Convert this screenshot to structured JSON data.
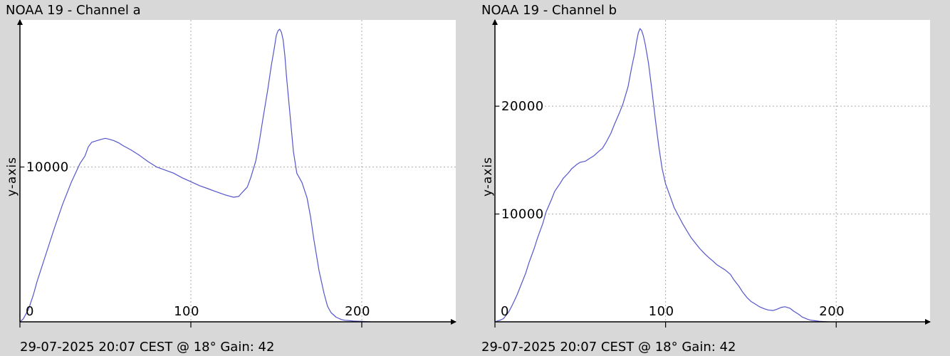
{
  "panels": [
    {
      "title": "NOAA 19 - Channel a",
      "footer": "29-07-2025 20:07 CEST @ 18° Gain: 42"
    },
    {
      "title": "NOAA 19 - Channel b",
      "footer": "29-07-2025 20:07 CEST @ 18° Gain: 42"
    }
  ],
  "colors": {
    "background": "#d8d8d8",
    "plot_background": "#ffffff",
    "line": "#5555cc",
    "grid": "#aaaaaa",
    "axis": "#000000"
  },
  "chart_data": [
    {
      "type": "line",
      "title": "NOAA 19 - Channel a",
      "xlabel": "",
      "ylabel": "y-axis",
      "xlim": [
        0,
        255
      ],
      "ylim": [
        0,
        19500
      ],
      "xticks": [
        0,
        100,
        200
      ],
      "xtick_labels": [
        "0",
        "100",
        "200"
      ],
      "yticks": [
        10000
      ],
      "ytick_labels": [
        "10000"
      ],
      "grid": true,
      "series": [
        {
          "x": [
            0,
            2,
            5,
            8,
            10,
            15,
            20,
            25,
            30,
            35,
            38,
            40,
            42,
            45,
            48,
            50,
            52,
            55,
            58,
            60,
            65,
            70,
            75,
            80,
            85,
            90,
            95,
            100,
            105,
            110,
            115,
            120,
            125,
            128,
            130,
            133,
            135,
            138,
            140,
            142,
            145,
            147,
            149,
            150,
            151,
            152,
            153,
            154,
            155,
            156,
            158,
            160,
            162,
            165,
            168,
            170,
            172,
            175,
            178,
            180,
            182,
            185,
            188,
            190,
            193,
            195,
            200,
            205
          ],
          "y": [
            0,
            200,
            800,
            1800,
            2600,
            4300,
            6000,
            7600,
            9000,
            10200,
            10700,
            11300,
            11600,
            11700,
            11800,
            11850,
            11800,
            11700,
            11550,
            11400,
            11100,
            10750,
            10350,
            10000,
            9800,
            9600,
            9300,
            9050,
            8800,
            8600,
            8400,
            8200,
            8050,
            8100,
            8350,
            8700,
            9300,
            10400,
            11600,
            13000,
            15000,
            16500,
            17800,
            18500,
            18800,
            18900,
            18700,
            18200,
            17200,
            15800,
            13400,
            11000,
            9600,
            9000,
            8000,
            6800,
            5300,
            3300,
            1800,
            1000,
            600,
            300,
            150,
            100,
            80,
            50,
            30,
            0
          ]
        }
      ]
    },
    {
      "type": "line",
      "title": "NOAA 19 - Channel b",
      "xlabel": "",
      "ylabel": "y-axis",
      "xlim": [
        0,
        255
      ],
      "ylim": [
        0,
        28000
      ],
      "xticks": [
        0,
        100,
        200
      ],
      "xtick_labels": [
        "0",
        "100",
        "200"
      ],
      "yticks": [
        10000,
        20000
      ],
      "ytick_labels": [
        "10000",
        "20000"
      ],
      "grid": true,
      "series": [
        {
          "x": [
            0,
            3,
            5,
            8,
            10,
            13,
            15,
            18,
            20,
            23,
            25,
            28,
            30,
            33,
            35,
            38,
            40,
            43,
            45,
            48,
            50,
            53,
            55,
            58,
            60,
            63,
            65,
            68,
            70,
            73,
            75,
            78,
            80,
            82,
            83,
            84,
            85,
            86,
            87,
            88,
            90,
            92,
            94,
            96,
            98,
            100,
            103,
            105,
            108,
            110,
            113,
            115,
            118,
            120,
            123,
            125,
            128,
            130,
            133,
            135,
            138,
            140,
            143,
            145,
            148,
            150,
            153,
            155,
            158,
            160,
            163,
            165,
            168,
            170,
            173,
            175,
            178,
            180,
            183,
            185,
            190,
            195
          ],
          "y": [
            0,
            150,
            300,
            900,
            1500,
            2500,
            3300,
            4500,
            5500,
            6800,
            7800,
            9100,
            10200,
            11300,
            12100,
            12800,
            13300,
            13800,
            14200,
            14600,
            14800,
            14900,
            15100,
            15400,
            15700,
            16100,
            16600,
            17500,
            18300,
            19400,
            20200,
            21800,
            23500,
            25000,
            26000,
            26800,
            27200,
            27000,
            26500,
            25800,
            24000,
            21500,
            18800,
            16300,
            14200,
            12800,
            11500,
            10600,
            9700,
            9100,
            8300,
            7800,
            7200,
            6800,
            6300,
            6000,
            5600,
            5300,
            5000,
            4800,
            4400,
            3900,
            3300,
            2800,
            2200,
            1900,
            1600,
            1400,
            1200,
            1100,
            1050,
            1150,
            1350,
            1400,
            1250,
            1000,
            700,
            450,
            250,
            150,
            50,
            0
          ]
        }
      ]
    }
  ]
}
